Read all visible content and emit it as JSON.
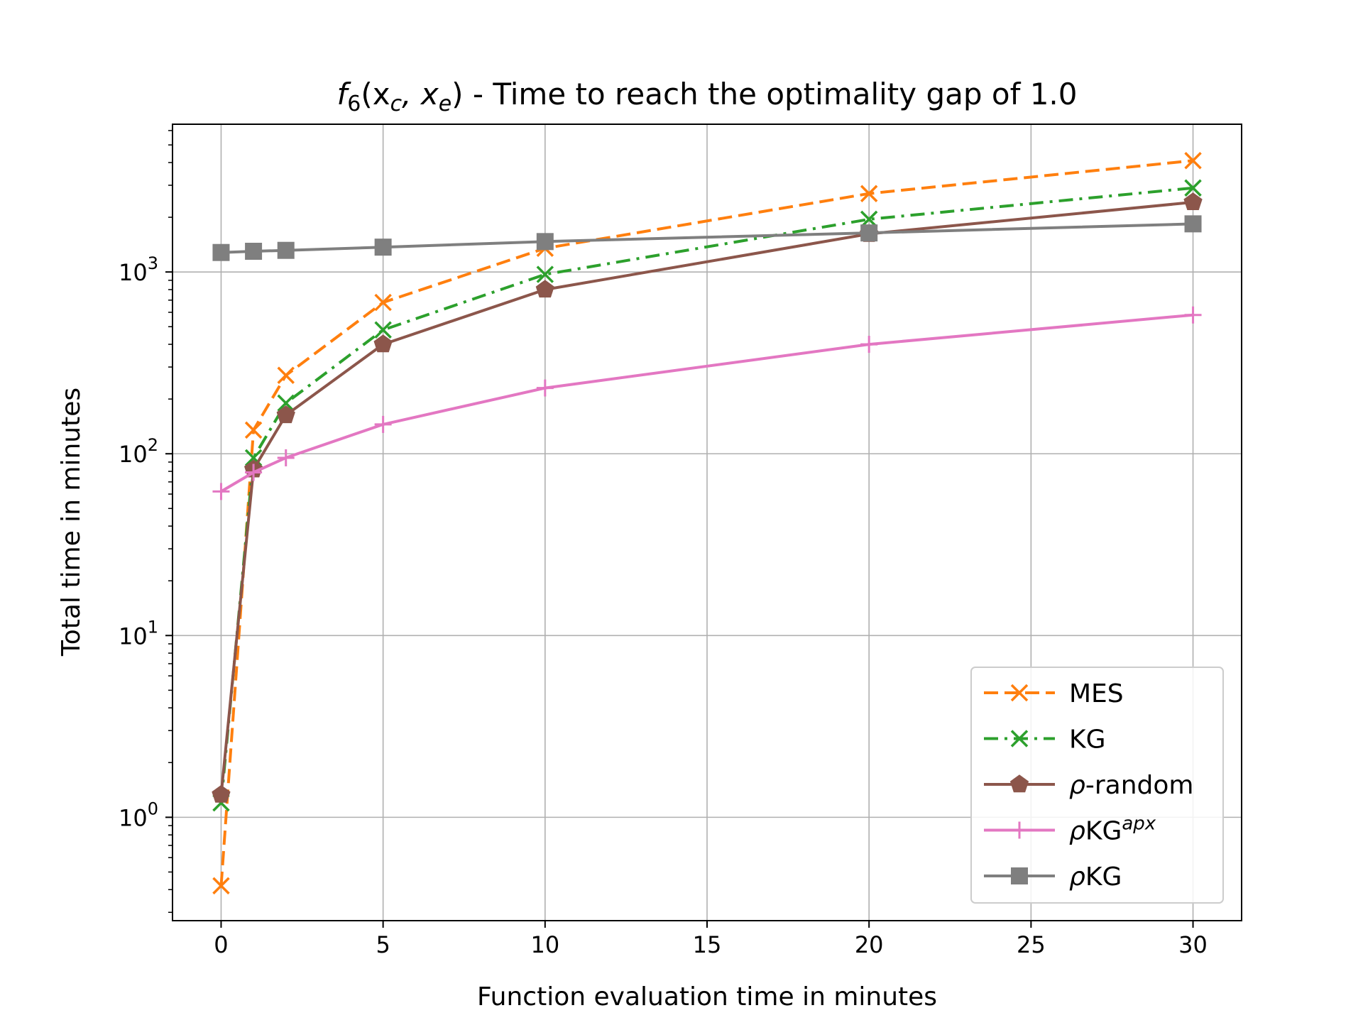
{
  "chart_data": {
    "type": "line",
    "title_prefix": "f",
    "title_sub": "6",
    "title_args": "(x",
    "title_arg_c": "c",
    "title_sep": ", x",
    "title_arg_e": "e",
    "title_close": ")",
    "title_rest": " - Time to reach the optimality gap of 1.0",
    "xlabel": "Function evaluation time in minutes",
    "ylabel": "Total time in minutes",
    "y_scale": "log",
    "xlim": [
      -1.5,
      31.5
    ],
    "ylim": [
      0.27,
      6500
    ],
    "grid": true,
    "legend_position": "lower-right",
    "x_ticks": [
      0,
      5,
      10,
      15,
      20,
      25,
      30
    ],
    "y_ticks": [
      {
        "value": 1,
        "base": "10",
        "exp": "0"
      },
      {
        "value": 10,
        "base": "10",
        "exp": "1"
      },
      {
        "value": 100,
        "base": "10",
        "exp": "2"
      },
      {
        "value": 1000,
        "base": "10",
        "exp": "3"
      }
    ],
    "x": [
      0,
      1,
      2,
      5,
      10,
      20,
      30
    ],
    "series": [
      {
        "name": "MES",
        "color": "#ff7f0e",
        "dash": "dashed",
        "marker": "x",
        "values": [
          0.42,
          135,
          270,
          680,
          1350,
          2700,
          4100
        ]
      },
      {
        "name": "KG",
        "color": "#2ca02c",
        "dash": "dashdot",
        "marker": "x",
        "values": [
          1.2,
          95,
          190,
          480,
          970,
          1950,
          2900
        ]
      },
      {
        "name_prefix": "ρ",
        "name": "-random",
        "color": "#8c564b",
        "dash": "solid",
        "marker": "pentagon",
        "values": [
          1.33,
          82,
          163,
          400,
          800,
          1620,
          2420
        ]
      },
      {
        "name_prefix": "ρ",
        "name": "KG",
        "name_sup": "apx",
        "color": "#e377c2",
        "dash": "solid",
        "marker": "plus",
        "values": [
          62,
          79,
          95,
          145,
          230,
          400,
          580
        ]
      },
      {
        "name_prefix": "ρ",
        "name": "KG",
        "color": "#7f7f7f",
        "dash": "solid",
        "marker": "square",
        "values": [
          1280,
          1300,
          1315,
          1370,
          1470,
          1640,
          1840
        ]
      }
    ]
  }
}
